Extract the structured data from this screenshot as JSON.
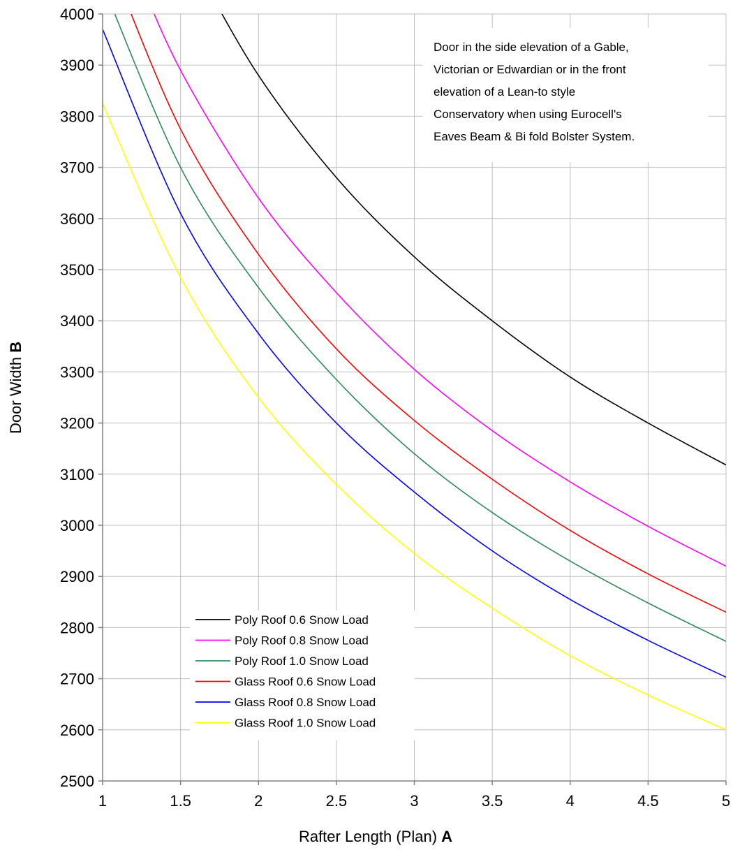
{
  "chart_data": {
    "type": "line",
    "title": "",
    "xlabel": "Rafter Length (Plan)",
    "xlabel_bold": "A",
    "ylabel": "Door Width",
    "ylabel_bold": "B",
    "xlim": [
      1,
      5
    ],
    "ylim": [
      2500,
      4000
    ],
    "x_ticks": [
      "1",
      "1.5",
      "2",
      "2.5",
      "3",
      "3.5",
      "4",
      "4.5",
      "5"
    ],
    "y_ticks": [
      "2500",
      "2600",
      "2700",
      "2800",
      "2900",
      "3000",
      "3100",
      "3200",
      "3300",
      "3400",
      "3500",
      "3600",
      "3700",
      "3800",
      "3900",
      "4000"
    ],
    "grid": true,
    "legend_position": "bottom-center",
    "annotation": [
      "Door in the side elevation of a Gable,",
      "Victorian or Edwardian or in the front",
      "elevation of a Lean-to style",
      "Conservatory when using Eurocell's",
      "Eaves Beam & Bi fold Bolster System."
    ],
    "x": [
      1,
      1.5,
      2,
      2.5,
      3,
      3.5,
      4,
      4.5,
      5
    ],
    "series": [
      {
        "name": "Poly Roof 0.6 Snow Load",
        "color": "#000000",
        "values": [
          null,
          null,
          3880,
          3680,
          3525,
          3400,
          3290,
          3200,
          3118
        ]
      },
      {
        "name": "Poly Roof 0.8 Snow Load",
        "color": "#ff00ff",
        "values": [
          null,
          3890,
          3640,
          3455,
          3305,
          3185,
          3085,
          2998,
          2920
        ]
      },
      {
        "name": "Poly Roof 1.0 Snow Load",
        "color": "#2e8b57",
        "values": [
          null,
          3700,
          3465,
          3285,
          3140,
          3025,
          2930,
          2848,
          2773
        ]
      },
      {
        "name": "Glass Roof 0.6 Snow Load",
        "color": "#ff0000",
        "values": [
          null,
          3775,
          3530,
          3345,
          3205,
          3090,
          2990,
          2905,
          2830
        ]
      },
      {
        "name": "Glass Roof 0.8 Snow Load",
        "color": "#0000ff",
        "values": [
          3970,
          3610,
          3375,
          3200,
          3065,
          2950,
          2855,
          2775,
          2703
        ]
      },
      {
        "name": "Glass Roof 1.0 Snow Load",
        "color": "#ffff00",
        "values": [
          3825,
          3485,
          3250,
          3080,
          2945,
          2838,
          2745,
          2668,
          2600
        ]
      }
    ]
  }
}
